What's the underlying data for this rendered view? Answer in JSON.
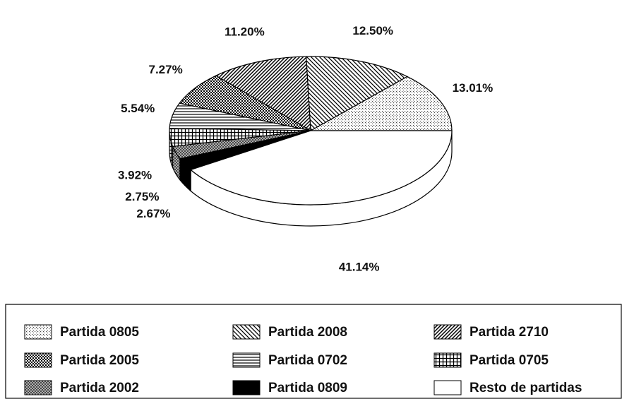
{
  "chart_data": {
    "type": "pie",
    "categories": [
      "Partida 0805",
      "Partida 2008",
      "Partida 2710",
      "Partida 2005",
      "Partida 0702",
      "Partida 0705",
      "Partida 2002",
      "Partida 0809",
      "Resto de partidas"
    ],
    "values": [
      13.01,
      12.5,
      11.2,
      7.27,
      5.54,
      3.92,
      2.75,
      2.67,
      41.14
    ],
    "value_labels": [
      "13.01%",
      "12.50%",
      "11.20%",
      "7.27%",
      "5.54%",
      "3.92%",
      "2.75%",
      "2.67%",
      "41.14%"
    ],
    "patterns": [
      "dots-light",
      "diag-back",
      "diag-fwd",
      "dots-dense",
      "hlines",
      "grid",
      "crosshatch",
      "solid",
      "none"
    ],
    "start_angle": 0,
    "direction": "counterclockwise",
    "three_d": true
  }
}
